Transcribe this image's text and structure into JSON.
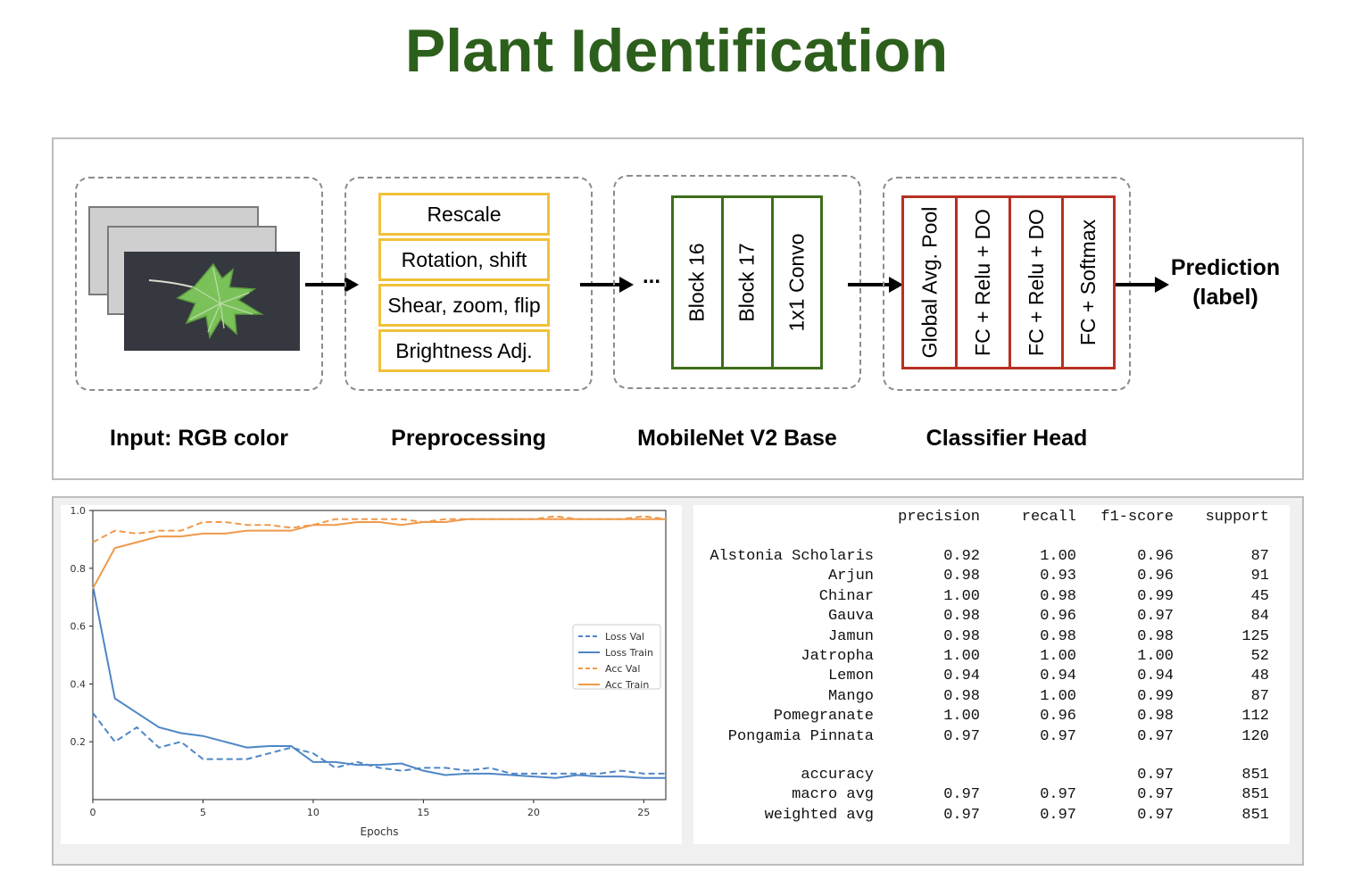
{
  "title": "Plant Identification",
  "colors": {
    "title": "#2d5f1c",
    "preprocess_border": "#f0c13a",
    "mobilenet_border": "#3e6d1a",
    "classifier_border": "#b73023",
    "loss": "#4f86c6",
    "acc": "#f0994a"
  },
  "pipeline": {
    "stages": {
      "input": "Input: RGB color",
      "preprocessing": "Preprocessing",
      "mobilenet": "MobileNet V2 Base",
      "classifier": "Classifier Head"
    },
    "preprocessing_steps": [
      "Rescale",
      "Rotation, shift",
      "Shear, zoom, flip",
      "Brightness Adj."
    ],
    "ellipsis": "...",
    "mobilenet_blocks": [
      "Block 16",
      "Block 17",
      "1x1 Convo"
    ],
    "classifier_layers": [
      "Global Avg. Pool",
      "FC + Relu + DO",
      "FC + Relu + DO",
      "FC + Softmax"
    ],
    "prediction": [
      "Prediction",
      "(label)"
    ]
  },
  "chart_data": {
    "type": "line",
    "xlabel": "Epochs",
    "ylabel": "",
    "xlim": [
      0,
      26
    ],
    "ylim": [
      0.0,
      1.0
    ],
    "xticks": [
      0,
      5,
      10,
      15,
      20,
      25
    ],
    "yticks": [
      0.2,
      0.4,
      0.6,
      0.8,
      1.0
    ],
    "legend_position": "center-right",
    "x": [
      0,
      1,
      2,
      3,
      4,
      5,
      6,
      7,
      8,
      9,
      10,
      11,
      12,
      13,
      14,
      15,
      16,
      17,
      18,
      19,
      20,
      21,
      22,
      23,
      24,
      25,
      26
    ],
    "series": [
      {
        "name": "Loss Val",
        "style": "dashed",
        "color": "#4f86c6",
        "values": [
          0.3,
          0.2,
          0.25,
          0.18,
          0.2,
          0.14,
          0.14,
          0.14,
          0.16,
          0.18,
          0.16,
          0.11,
          0.13,
          0.11,
          0.1,
          0.11,
          0.11,
          0.1,
          0.11,
          0.09,
          0.09,
          0.09,
          0.09,
          0.09,
          0.1,
          0.09,
          0.09
        ]
      },
      {
        "name": "Loss Train",
        "style": "solid",
        "color": "#4f86c6",
        "values": [
          0.74,
          0.35,
          0.3,
          0.25,
          0.23,
          0.22,
          0.2,
          0.18,
          0.185,
          0.185,
          0.13,
          0.13,
          0.12,
          0.12,
          0.125,
          0.1,
          0.085,
          0.09,
          0.09,
          0.085,
          0.08,
          0.075,
          0.085,
          0.08,
          0.08,
          0.075,
          0.075
        ]
      },
      {
        "name": "Acc Val",
        "style": "dashed",
        "color": "#f0994a",
        "values": [
          0.89,
          0.93,
          0.92,
          0.93,
          0.93,
          0.96,
          0.96,
          0.95,
          0.95,
          0.94,
          0.95,
          0.97,
          0.97,
          0.97,
          0.97,
          0.96,
          0.97,
          0.97,
          0.97,
          0.97,
          0.97,
          0.98,
          0.97,
          0.97,
          0.97,
          0.98,
          0.97
        ]
      },
      {
        "name": "Acc Train",
        "style": "solid",
        "color": "#f0994a",
        "values": [
          0.73,
          0.87,
          0.89,
          0.91,
          0.91,
          0.92,
          0.92,
          0.93,
          0.93,
          0.93,
          0.95,
          0.95,
          0.96,
          0.96,
          0.95,
          0.96,
          0.96,
          0.97,
          0.97,
          0.97,
          0.97,
          0.97,
          0.97,
          0.97,
          0.97,
          0.97,
          0.97
        ]
      }
    ]
  },
  "report": {
    "headers": [
      "precision",
      "recall",
      "f1-score",
      "support"
    ],
    "rows": [
      {
        "label": "Alstonia Scholaris",
        "precision": "0.92",
        "recall": "1.00",
        "f1": "0.96",
        "support": "87"
      },
      {
        "label": "Arjun",
        "precision": "0.98",
        "recall": "0.93",
        "f1": "0.96",
        "support": "91"
      },
      {
        "label": "Chinar",
        "precision": "1.00",
        "recall": "0.98",
        "f1": "0.99",
        "support": "45"
      },
      {
        "label": "Gauva",
        "precision": "0.98",
        "recall": "0.96",
        "f1": "0.97",
        "support": "84"
      },
      {
        "label": "Jamun",
        "precision": "0.98",
        "recall": "0.98",
        "f1": "0.98",
        "support": "125"
      },
      {
        "label": "Jatropha",
        "precision": "1.00",
        "recall": "1.00",
        "f1": "1.00",
        "support": "52"
      },
      {
        "label": "Lemon",
        "precision": "0.94",
        "recall": "0.94",
        "f1": "0.94",
        "support": "48"
      },
      {
        "label": "Mango",
        "precision": "0.98",
        "recall": "1.00",
        "f1": "0.99",
        "support": "87"
      },
      {
        "label": "Pomegranate",
        "precision": "1.00",
        "recall": "0.96",
        "f1": "0.98",
        "support": "112"
      },
      {
        "label": "Pongamia Pinnata",
        "precision": "0.97",
        "recall": "0.97",
        "f1": "0.97",
        "support": "120"
      }
    ],
    "summary": [
      {
        "label": "accuracy",
        "precision": "",
        "recall": "",
        "f1": "0.97",
        "support": "851"
      },
      {
        "label": "macro avg",
        "precision": "0.97",
        "recall": "0.97",
        "f1": "0.97",
        "support": "851"
      },
      {
        "label": "weighted avg",
        "precision": "0.97",
        "recall": "0.97",
        "f1": "0.97",
        "support": "851"
      }
    ]
  }
}
